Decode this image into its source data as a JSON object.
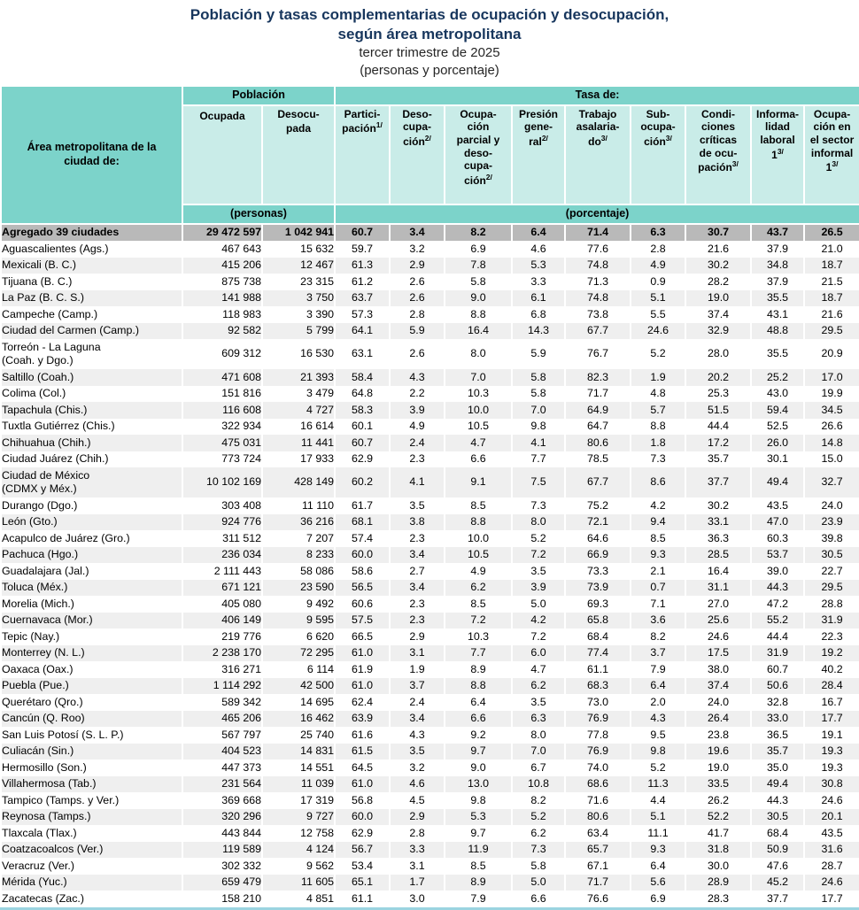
{
  "header": {
    "title_line1": "Población y tasas complementarias de ocupación y desocupación,",
    "title_line2": "según área metropolitana",
    "subtitle": "tercer trimestre de 2025",
    "units_note": "(personas y porcentaje)"
  },
  "colors": {
    "title_navy": "#17365D",
    "teal_header": "#7CD3CA",
    "light_teal_cell": "#C9ECE8",
    "aggregate_row_gray": "#B9B9B9",
    "alt_row_gray": "#EFEFEF"
  },
  "table": {
    "area_header": "Área metropolitana de la\nciudad de:",
    "group_poblacion": "Población",
    "group_tasa": "Tasa de:",
    "units_personas": "(personas)",
    "units_porcentaje": "(porcentaje)",
    "columns": [
      {
        "label": "Ocupada",
        "sup": ""
      },
      {
        "label": "Desocu-\npada",
        "sup": ""
      },
      {
        "label": "Partici-\npación",
        "sup": "1/"
      },
      {
        "label": "Deso-\ncupa-\nción",
        "sup": "2/"
      },
      {
        "label": "Ocupa-\nción\nparcial y\ndeso-\ncupa-\nción",
        "sup": "2/"
      },
      {
        "label": "Presión\ngene-\nral",
        "sup": "2/"
      },
      {
        "label": "Trabajo\nasalaria-\ndo",
        "sup": "3/"
      },
      {
        "label": "Sub-\nocupa-\nción",
        "sup": "3/"
      },
      {
        "label": "Condi-\nciones\ncríticas\nde ocu-\npación",
        "sup": "3/"
      },
      {
        "label": "Informa-\nlidad\nlaboral 1",
        "sup": "3/"
      },
      {
        "label": "Ocupa-\nción en\nel sector\ninformal 1",
        "sup": "3/"
      }
    ],
    "rows": [
      {
        "name": "Agregado 39 ciudades",
        "aggregate": true,
        "values": [
          "29 472 597",
          "1 042 941",
          "60.7",
          "3.4",
          "8.2",
          "6.4",
          "71.4",
          "6.3",
          "30.7",
          "43.7",
          "26.5"
        ]
      },
      {
        "name": "Aguascalientes (Ags.)",
        "aggregate": false,
        "values": [
          "467 643",
          "15 632",
          "59.7",
          "3.2",
          "6.9",
          "4.6",
          "77.6",
          "2.8",
          "21.6",
          "37.9",
          "21.0"
        ]
      },
      {
        "name": "Mexicali (B. C.)",
        "aggregate": false,
        "values": [
          "415 206",
          "12 467",
          "61.3",
          "2.9",
          "7.8",
          "5.3",
          "74.8",
          "4.9",
          "30.2",
          "34.8",
          "18.7"
        ]
      },
      {
        "name": "Tijuana (B. C.)",
        "aggregate": false,
        "values": [
          "875 738",
          "23 315",
          "61.2",
          "2.6",
          "5.8",
          "3.3",
          "71.3",
          "0.9",
          "28.2",
          "37.9",
          "21.5"
        ]
      },
      {
        "name": "La Paz (B. C. S.)",
        "aggregate": false,
        "values": [
          "141 988",
          "3 750",
          "63.7",
          "2.6",
          "9.0",
          "6.1",
          "74.8",
          "5.1",
          "19.0",
          "35.5",
          "18.7"
        ]
      },
      {
        "name": "Campeche (Camp.)",
        "aggregate": false,
        "values": [
          "118 983",
          "3 390",
          "57.3",
          "2.8",
          "8.8",
          "6.8",
          "73.8",
          "5.5",
          "37.4",
          "43.1",
          "21.6"
        ]
      },
      {
        "name": "Ciudad del Carmen (Camp.)",
        "aggregate": false,
        "values": [
          "92 582",
          "5 799",
          "64.1",
          "5.9",
          "16.4",
          "14.3",
          "67.7",
          "24.6",
          "32.9",
          "48.8",
          "29.5"
        ]
      },
      {
        "name": "Torreón - La Laguna\n(Coah. y Dgo.)",
        "aggregate": false,
        "values": [
          "609 312",
          "16 530",
          "63.1",
          "2.6",
          "8.0",
          "5.9",
          "76.7",
          "5.2",
          "28.0",
          "35.5",
          "20.9"
        ]
      },
      {
        "name": "Saltillo (Coah.)",
        "aggregate": false,
        "values": [
          "471 608",
          "21 393",
          "58.4",
          "4.3",
          "7.0",
          "5.8",
          "82.3",
          "1.9",
          "20.2",
          "25.2",
          "17.0"
        ]
      },
      {
        "name": "Colima (Col.)",
        "aggregate": false,
        "values": [
          "151 816",
          "3 479",
          "64.8",
          "2.2",
          "10.3",
          "5.8",
          "71.7",
          "4.8",
          "25.3",
          "43.0",
          "19.9"
        ]
      },
      {
        "name": "Tapachula (Chis.)",
        "aggregate": false,
        "values": [
          "116 608",
          "4 727",
          "58.3",
          "3.9",
          "10.0",
          "7.0",
          "64.9",
          "5.7",
          "51.5",
          "59.4",
          "34.5"
        ]
      },
      {
        "name": "Tuxtla Gutiérrez (Chis.)",
        "aggregate": false,
        "values": [
          "322 934",
          "16 614",
          "60.1",
          "4.9",
          "10.5",
          "9.8",
          "64.7",
          "8.8",
          "44.4",
          "52.5",
          "26.6"
        ]
      },
      {
        "name": "Chihuahua (Chih.)",
        "aggregate": false,
        "values": [
          "475 031",
          "11 441",
          "60.7",
          "2.4",
          "4.7",
          "4.1",
          "80.6",
          "1.8",
          "17.2",
          "26.0",
          "14.8"
        ]
      },
      {
        "name": "Ciudad Juárez (Chih.)",
        "aggregate": false,
        "values": [
          "773 724",
          "17 933",
          "62.9",
          "2.3",
          "6.6",
          "7.7",
          "78.5",
          "7.3",
          "35.7",
          "30.1",
          "15.0"
        ]
      },
      {
        "name": "Ciudad de México\n(CDMX y Méx.)",
        "aggregate": false,
        "values": [
          "10 102 169",
          "428 149",
          "60.2",
          "4.1",
          "9.1",
          "7.5",
          "67.7",
          "8.6",
          "37.7",
          "49.4",
          "32.7"
        ]
      },
      {
        "name": "Durango (Dgo.)",
        "aggregate": false,
        "values": [
          "303 408",
          "11 110",
          "61.7",
          "3.5",
          "8.5",
          "7.3",
          "75.2",
          "4.2",
          "30.2",
          "43.5",
          "24.0"
        ]
      },
      {
        "name": "León (Gto.)",
        "aggregate": false,
        "values": [
          "924 776",
          "36 216",
          "68.1",
          "3.8",
          "8.8",
          "8.0",
          "72.1",
          "9.4",
          "33.1",
          "47.0",
          "23.9"
        ]
      },
      {
        "name": "Acapulco de Juárez (Gro.)",
        "aggregate": false,
        "values": [
          "311 512",
          "7 207",
          "57.4",
          "2.3",
          "10.0",
          "5.2",
          "64.6",
          "8.5",
          "36.3",
          "60.3",
          "39.8"
        ]
      },
      {
        "name": "Pachuca (Hgo.)",
        "aggregate": false,
        "values": [
          "236 034",
          "8 233",
          "60.0",
          "3.4",
          "10.5",
          "7.2",
          "66.9",
          "9.3",
          "28.5",
          "53.7",
          "30.5"
        ]
      },
      {
        "name": "Guadalajara (Jal.)",
        "aggregate": false,
        "values": [
          "2 111 443",
          "58 086",
          "58.6",
          "2.7",
          "4.9",
          "3.5",
          "73.3",
          "2.1",
          "16.4",
          "39.0",
          "22.7"
        ]
      },
      {
        "name": "Toluca (Méx.)",
        "aggregate": false,
        "values": [
          "671 121",
          "23 590",
          "56.5",
          "3.4",
          "6.2",
          "3.9",
          "73.9",
          "0.7",
          "31.1",
          "44.3",
          "29.5"
        ]
      },
      {
        "name": "Morelia (Mich.)",
        "aggregate": false,
        "values": [
          "405 080",
          "9 492",
          "60.6",
          "2.3",
          "8.5",
          "5.0",
          "69.3",
          "7.1",
          "27.0",
          "47.2",
          "28.8"
        ]
      },
      {
        "name": "Cuernavaca (Mor.)",
        "aggregate": false,
        "values": [
          "406 149",
          "9 595",
          "57.5",
          "2.3",
          "7.2",
          "4.2",
          "65.8",
          "3.6",
          "25.6",
          "55.2",
          "31.9"
        ]
      },
      {
        "name": "Tepic (Nay.)",
        "aggregate": false,
        "values": [
          "219 776",
          "6 620",
          "66.5",
          "2.9",
          "10.3",
          "7.2",
          "68.4",
          "8.2",
          "24.6",
          "44.4",
          "22.3"
        ]
      },
      {
        "name": "Monterrey (N. L.)",
        "aggregate": false,
        "values": [
          "2 238 170",
          "72 295",
          "61.0",
          "3.1",
          "7.7",
          "6.0",
          "77.4",
          "3.7",
          "17.5",
          "31.9",
          "19.2"
        ]
      },
      {
        "name": "Oaxaca (Oax.)",
        "aggregate": false,
        "values": [
          "316 271",
          "6 114",
          "61.9",
          "1.9",
          "8.9",
          "4.7",
          "61.1",
          "7.9",
          "38.0",
          "60.7",
          "40.2"
        ]
      },
      {
        "name": "Puebla (Pue.)",
        "aggregate": false,
        "values": [
          "1 114 292",
          "42 500",
          "61.0",
          "3.7",
          "8.8",
          "6.2",
          "68.3",
          "6.4",
          "37.4",
          "50.6",
          "28.4"
        ]
      },
      {
        "name": "Querétaro (Qro.)",
        "aggregate": false,
        "values": [
          "589 342",
          "14 695",
          "62.4",
          "2.4",
          "6.4",
          "3.5",
          "73.0",
          "2.0",
          "24.0",
          "32.8",
          "16.7"
        ]
      },
      {
        "name": "Cancún (Q. Roo)",
        "aggregate": false,
        "values": [
          "465 206",
          "16 462",
          "63.9",
          "3.4",
          "6.6",
          "6.3",
          "76.9",
          "4.3",
          "26.4",
          "33.0",
          "17.7"
        ]
      },
      {
        "name": "San Luis Potosí (S. L. P.)",
        "aggregate": false,
        "values": [
          "567 797",
          "25 740",
          "61.6",
          "4.3",
          "9.2",
          "8.0",
          "77.8",
          "9.5",
          "23.8",
          "36.5",
          "19.1"
        ]
      },
      {
        "name": "Culiacán (Sin.)",
        "aggregate": false,
        "values": [
          "404 523",
          "14 831",
          "61.5",
          "3.5",
          "9.7",
          "7.0",
          "76.9",
          "9.8",
          "19.6",
          "35.7",
          "19.3"
        ]
      },
      {
        "name": "Hermosillo (Son.)",
        "aggregate": false,
        "values": [
          "447 373",
          "14 551",
          "64.5",
          "3.2",
          "9.0",
          "6.7",
          "74.0",
          "5.2",
          "19.0",
          "35.0",
          "19.3"
        ]
      },
      {
        "name": "Villahermosa (Tab.)",
        "aggregate": false,
        "values": [
          "231 564",
          "11 039",
          "61.0",
          "4.6",
          "13.0",
          "10.8",
          "68.6",
          "11.3",
          "33.5",
          "49.4",
          "30.8"
        ]
      },
      {
        "name": "Tampico (Tamps. y Ver.)",
        "aggregate": false,
        "values": [
          "369 668",
          "17 319",
          "56.8",
          "4.5",
          "9.8",
          "8.2",
          "71.6",
          "4.4",
          "26.2",
          "44.3",
          "24.6"
        ]
      },
      {
        "name": "Reynosa (Tamps.)",
        "aggregate": false,
        "values": [
          "320 296",
          "9 727",
          "60.0",
          "2.9",
          "5.3",
          "5.2",
          "80.6",
          "5.1",
          "52.2",
          "30.5",
          "20.1"
        ]
      },
      {
        "name": "Tlaxcala (Tlax.)",
        "aggregate": false,
        "values": [
          "443 844",
          "12 758",
          "62.9",
          "2.8",
          "9.7",
          "6.2",
          "63.4",
          "11.1",
          "41.7",
          "68.4",
          "43.5"
        ]
      },
      {
        "name": "Coatzacoalcos (Ver.)",
        "aggregate": false,
        "values": [
          "119 589",
          "4 124",
          "56.7",
          "3.3",
          "11.9",
          "7.3",
          "65.7",
          "9.3",
          "31.8",
          "50.9",
          "31.6"
        ]
      },
      {
        "name": "Veracruz (Ver.)",
        "aggregate": false,
        "values": [
          "302 332",
          "9 562",
          "53.4",
          "3.1",
          "8.5",
          "5.8",
          "67.1",
          "6.4",
          "30.0",
          "47.6",
          "28.7"
        ]
      },
      {
        "name": "Mérida (Yuc.)",
        "aggregate": false,
        "values": [
          "659 479",
          "11 605",
          "65.1",
          "1.7",
          "8.9",
          "5.0",
          "71.7",
          "5.6",
          "28.9",
          "45.2",
          "24.6"
        ]
      },
      {
        "name": "Zacatecas (Zac.)",
        "aggregate": false,
        "values": [
          "158 210",
          "4 851",
          "61.1",
          "3.0",
          "7.9",
          "6.6",
          "76.6",
          "6.9",
          "28.3",
          "37.7",
          "17.7"
        ]
      }
    ]
  }
}
